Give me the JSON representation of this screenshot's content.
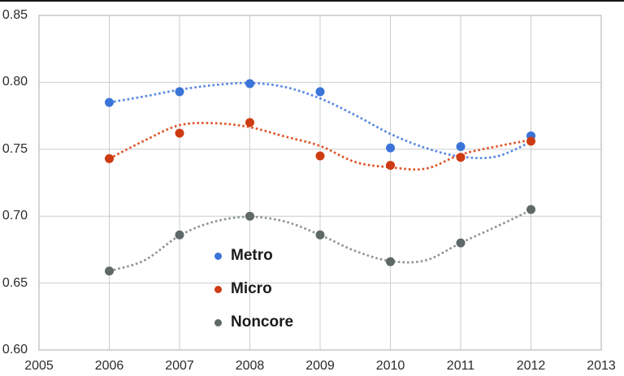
{
  "chart_data": {
    "type": "scatter",
    "title": "",
    "xlabel": "",
    "ylabel": "",
    "grid": true,
    "legend_position": "inside-lower-left",
    "trendline_style": "dotted",
    "x_range": [
      2005,
      2013
    ],
    "y_range": [
      0.6,
      0.85
    ],
    "x_ticks": [
      "2005",
      "2006",
      "2007",
      "2008",
      "2009",
      "2010",
      "2011",
      "2012",
      "2013"
    ],
    "y_ticks": [
      "0.85",
      "0.80",
      "0.75",
      "0.70",
      "0.65",
      "0.60"
    ],
    "categories": [
      2006,
      2007,
      2008,
      2009,
      2010,
      2011,
      2012
    ],
    "series": [
      {
        "name": "Metro",
        "marker_color": "#3b74d9",
        "line_color": "#5688e4",
        "values": [
          0.785,
          0.793,
          0.799,
          0.793,
          0.751,
          0.752,
          0.76
        ],
        "trend_x": [
          2006,
          2006.5,
          2007,
          2007.5,
          2008,
          2008.5,
          2009,
          2009.5,
          2010,
          2010.5,
          2011,
          2011.5,
          2012
        ],
        "trend_y": [
          0.785,
          0.7895,
          0.7945,
          0.798,
          0.7995,
          0.7965,
          0.788,
          0.7755,
          0.7615,
          0.751,
          0.7445,
          0.7445,
          0.7555
        ]
      },
      {
        "name": "Micro",
        "marker_color": "#ce3b12",
        "line_color": "#e05327",
        "values": [
          0.743,
          0.762,
          0.77,
          0.745,
          0.738,
          0.744,
          0.756
        ],
        "trend_x": [
          2006,
          2006.5,
          2007,
          2007.5,
          2008,
          2008.5,
          2009,
          2009.5,
          2010,
          2010.5,
          2011,
          2011.5,
          2012
        ],
        "trend_y": [
          0.743,
          0.7565,
          0.768,
          0.7695,
          0.7665,
          0.7595,
          0.7525,
          0.7405,
          0.7365,
          0.7355,
          0.746,
          0.752,
          0.757
        ]
      },
      {
        "name": "Noncore",
        "marker_color": "#5e6867",
        "line_color": "#8e9595",
        "values": [
          0.659,
          0.686,
          0.7,
          0.686,
          0.666,
          0.68,
          0.705
        ],
        "trend_x": [
          2006,
          2006.5,
          2007,
          2007.5,
          2008,
          2008.5,
          2009,
          2009.5,
          2010,
          2010.5,
          2011,
          2011.5,
          2012
        ],
        "trend_y": [
          0.659,
          0.667,
          0.6855,
          0.696,
          0.6995,
          0.696,
          0.686,
          0.674,
          0.6665,
          0.667,
          0.68,
          0.692,
          0.7045
        ]
      }
    ]
  }
}
